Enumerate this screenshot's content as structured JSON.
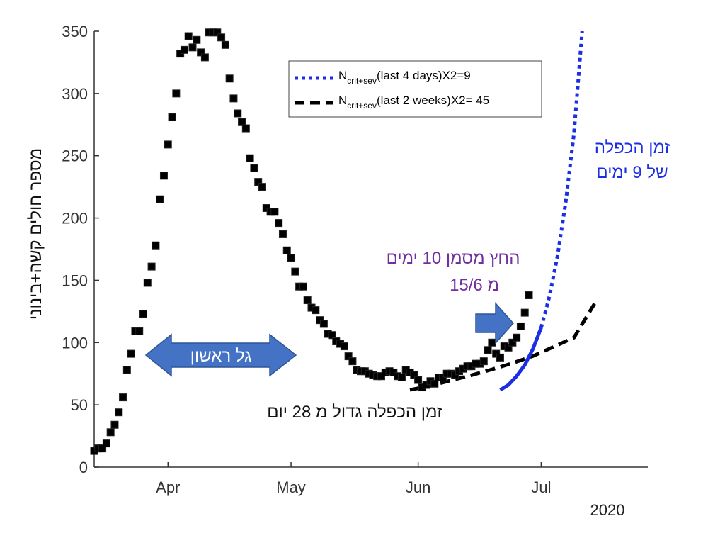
{
  "chart_data": {
    "type": "scatter",
    "title": "",
    "year_label": "2020",
    "ylabel": "מספר חולים קשה+בינוני",
    "xlabel": "",
    "ylim": [
      0,
      350
    ],
    "yticks": [
      0,
      50,
      100,
      150,
      200,
      250,
      300,
      350
    ],
    "xlim_days_from_mar1": [
      13,
      148
    ],
    "xticks": [
      {
        "label": "Apr",
        "day": 31
      },
      {
        "label": "May",
        "day": 61
      },
      {
        "label": "Jun",
        "day": 92
      },
      {
        "label": "Jul",
        "day": 122
      }
    ],
    "series": [
      {
        "name": "",
        "marker": "square",
        "color": "#000000",
        "x_days_from_mar1": [
          13,
          14,
          15,
          16,
          17,
          18,
          19,
          20,
          21,
          22,
          23,
          24,
          25,
          26,
          27,
          28,
          29,
          30,
          31,
          32,
          33,
          34,
          35,
          36,
          37,
          38,
          39,
          40,
          41,
          42,
          43,
          44,
          45,
          46,
          47,
          48,
          49,
          50,
          51,
          52,
          53,
          54,
          55,
          56,
          57,
          58,
          59,
          60,
          61,
          62,
          63,
          64,
          65,
          66,
          67,
          68,
          69,
          70,
          71,
          72,
          73,
          74,
          75,
          76,
          77,
          78,
          79,
          80,
          81,
          82,
          83,
          84,
          85,
          86,
          87,
          88,
          89,
          90,
          91,
          92,
          93,
          94,
          95,
          96,
          97,
          98,
          99,
          100,
          101,
          102,
          103,
          104,
          105,
          106,
          107,
          108,
          109,
          110,
          111,
          112,
          113,
          114,
          115,
          116,
          117,
          118,
          119,
          120,
          121,
          122
        ],
        "y": [
          13,
          15,
          15,
          19,
          28,
          34,
          44,
          56,
          78,
          91,
          109,
          109,
          123,
          148,
          161,
          178,
          215,
          234,
          259,
          281,
          300,
          332,
          335,
          346,
          337,
          343,
          333,
          329,
          349,
          349,
          349,
          345,
          339,
          312,
          296,
          284,
          277,
          272,
          248,
          240,
          229,
          225,
          208,
          205,
          205,
          196,
          187,
          174,
          168,
          157,
          145,
          145,
          134,
          128,
          126,
          118,
          115,
          107,
          106,
          101,
          99,
          97,
          89,
          85,
          78,
          77,
          77,
          75,
          74,
          73,
          73,
          76,
          77,
          76,
          73,
          72,
          78,
          76,
          74,
          70,
          64,
          66,
          69,
          67,
          72,
          72,
          75,
          75,
          74,
          77,
          79,
          81,
          81,
          83,
          83,
          85,
          94,
          100,
          91,
          88,
          97,
          96,
          100,
          104,
          113,
          124,
          138
        ]
      },
      {
        "name": "N_crit+sev(last 4 days)X2=9",
        "style": "dotted",
        "color": "#1a2ee6",
        "x_days_from_mar1": [
          112,
          114,
          116,
          118,
          120,
          122,
          124,
          126,
          128,
          130,
          132
        ],
        "y": [
          62,
          66,
          73,
          82,
          95,
          112,
          137,
          170,
          213,
          268,
          350
        ]
      },
      {
        "name": "N_crit+sev(last 2 weeks)X2= 45",
        "style": "dashed",
        "color": "#000000",
        "x_days_from_mar1": [
          90,
          95,
          100,
          105,
          110,
          115,
          120,
          125,
          130,
          135
        ],
        "y": [
          62,
          65.3,
          69.6,
          73.8,
          78.5,
          83.5,
          89.2,
          96.5,
          104,
          131.2
        ]
      }
    ],
    "legend": {
      "position": "top-right",
      "entries": [
        {
          "main": "N",
          "sub": "crit+sev",
          "rest": "(last 4 days)X2=9",
          "color": "#1a2ee6",
          "style": "dotted"
        },
        {
          "main": "N",
          "sub": "crit+sev",
          "rest": "(last 2 weeks)X2= 45",
          "color": "#000000",
          "style": "dashed"
        }
      ]
    },
    "annotations": {
      "first_wave": "גל ראשון",
      "doubling_28_days": "זמן הכפלה גדול מ 28 יום",
      "arrow_marks_line1": "החץ מסמן 10 ימים",
      "arrow_marks_line2": "מ 15/6",
      "doubling_9_line1": "זמן הכפלה",
      "doubling_9_line2": "של 9 ימים"
    },
    "colors": {
      "axis": "#333333",
      "arrow_fill": "#4472c4",
      "arrow_stroke": "#2f5597",
      "blue_text": "#1a2ee6",
      "purple_text": "#7030a0"
    }
  }
}
